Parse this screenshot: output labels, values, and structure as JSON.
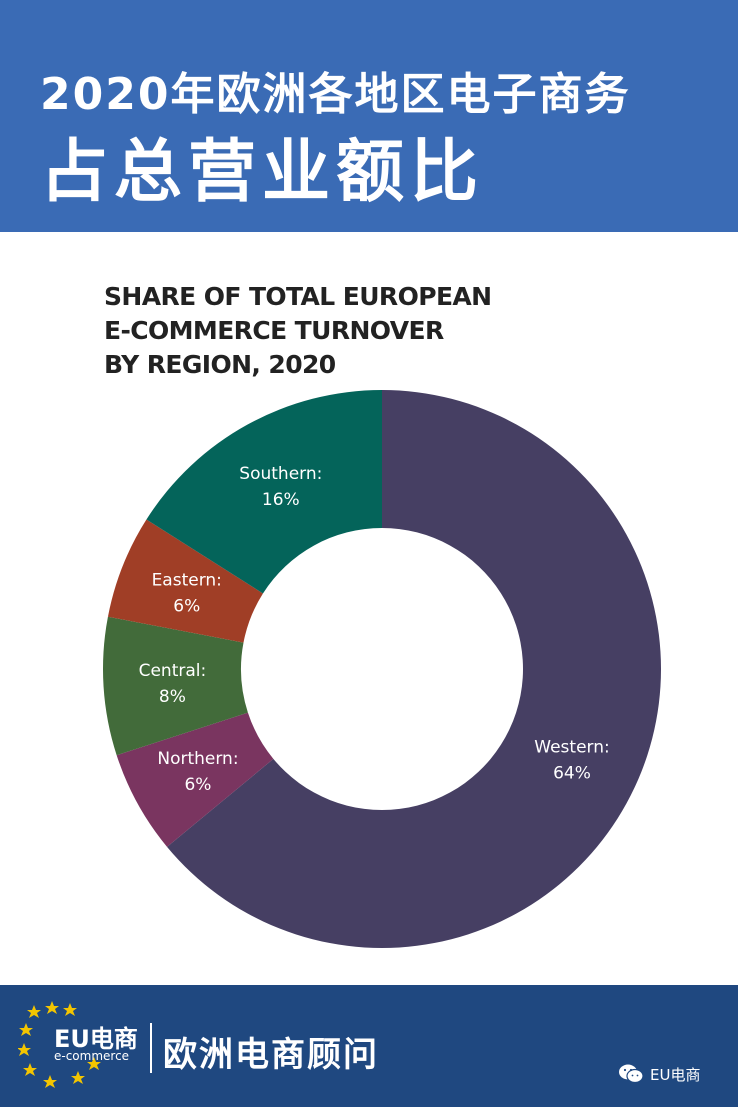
{
  "header": {
    "line1": "2020年欧洲各地区电子商务",
    "line2": "占总营业额比"
  },
  "chart_data": {
    "type": "pie",
    "variant": "donut",
    "title_lines": [
      "SHARE OF TOTAL EUROPEAN",
      "E-COMMERCE TURNOVER",
      "BY REGION, 2020"
    ],
    "slices": [
      {
        "name": "Western:",
        "value": 64,
        "label": "64%",
        "color": "#463f63"
      },
      {
        "name": "Northern:",
        "value": 6,
        "label": "6%",
        "color": "#7a3560"
      },
      {
        "name": "Central:",
        "value": 8,
        "label": "8%",
        "color": "#426b3a"
      },
      {
        "name": "Eastern:",
        "value": 6,
        "label": "6%",
        "color": "#a03e26"
      },
      {
        "name": "Southern:",
        "value": 16,
        "label": "16%",
        "color": "#04645a"
      }
    ]
  },
  "footer": {
    "logo_text": "EU电商",
    "logo_sub": "e-commerce",
    "title": "欧洲电商顾问",
    "wechat_account": "EU电商"
  },
  "colors": {
    "header_bg": "#3a6bb5",
    "footer_bg": "#1f4880",
    "star": "#f3c500"
  },
  "icons": {
    "logo": "eu-stars-icon",
    "wechat": "wechat-icon"
  }
}
